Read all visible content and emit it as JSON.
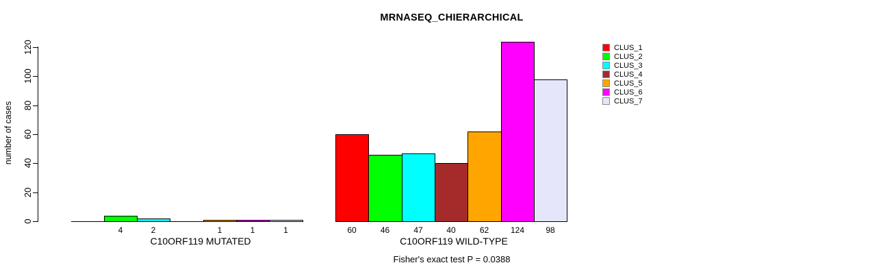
{
  "chart_data": {
    "type": "bar",
    "title": "MRNASEQ_CHIERARCHICAL",
    "ylabel": "number of cases",
    "ylim": [
      0,
      120
    ],
    "yticks": [
      0,
      20,
      40,
      60,
      80,
      100,
      120
    ],
    "grid": false,
    "legend_position": "right",
    "annotation": "Fisher's exact test P = 0.0388",
    "clusters": [
      {
        "name": "CLUS_1",
        "color": "#FF0000"
      },
      {
        "name": "CLUS_2",
        "color": "#00FF00"
      },
      {
        "name": "CLUS_3",
        "color": "#00FFFF"
      },
      {
        "name": "CLUS_4",
        "color": "#A52A2A"
      },
      {
        "name": "CLUS_5",
        "color": "#FFA500"
      },
      {
        "name": "CLUS_6",
        "color": "#FF00FF"
      },
      {
        "name": "CLUS_7",
        "color": "#E6E6FA"
      }
    ],
    "groups": [
      {
        "label": "C10ORF119 MUTATED",
        "values": [
          0,
          4,
          2,
          0,
          1,
          1,
          1
        ],
        "bar_labels": [
          "",
          "4",
          "2",
          "",
          "1",
          "1",
          "1"
        ]
      },
      {
        "label": "C10ORF119 WILD-TYPE",
        "values": [
          60,
          46,
          47,
          40,
          62,
          124,
          98
        ],
        "bar_labels": [
          "60",
          "46",
          "47",
          "40",
          "62",
          "124",
          "98"
        ]
      }
    ]
  }
}
